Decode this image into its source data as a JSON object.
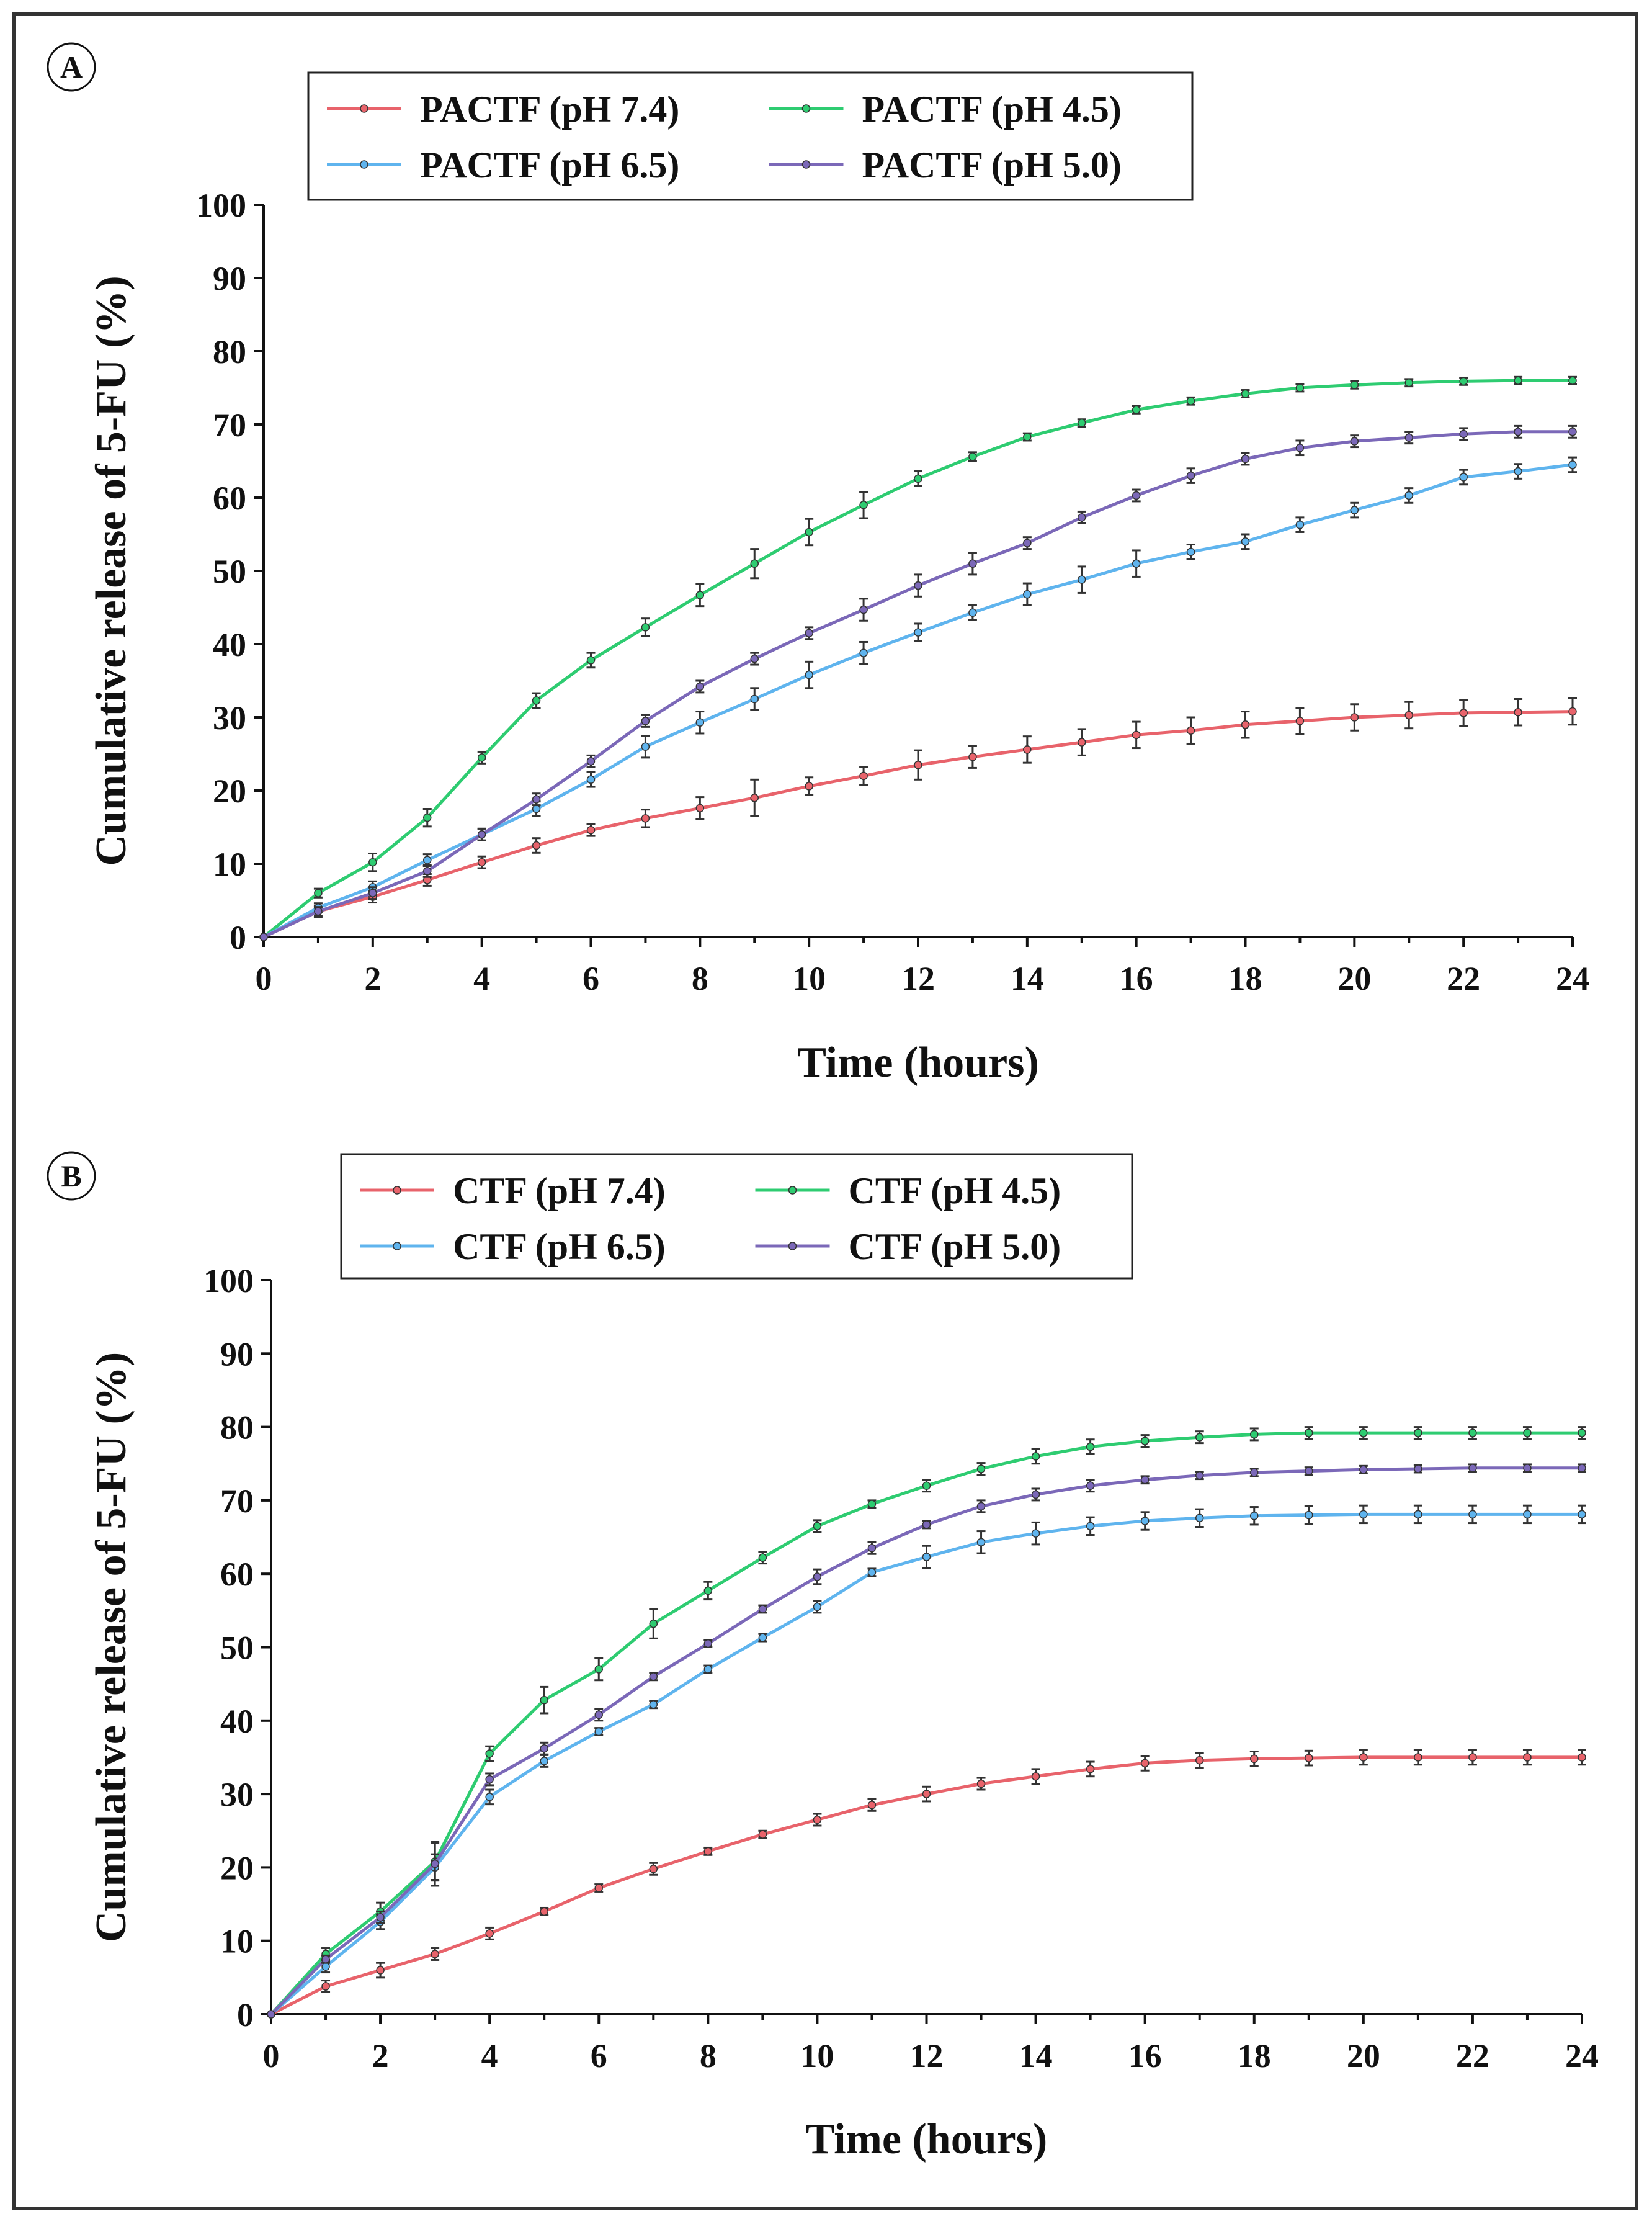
{
  "colors": {
    "ph74": "#e8636b",
    "ph45": "#2ecc71",
    "ph65": "#5fb4ee",
    "ph50": "#7b68b8",
    "axis": "#111111",
    "error_bar": "#333333"
  },
  "chart_data": [
    {
      "panel_label": "A",
      "type": "line",
      "xlabel": "Time  (hours)",
      "ylabel": "Cumulative release of 5-FU (%)",
      "xlim": [
        0,
        24
      ],
      "ylim": [
        0,
        100
      ],
      "xticks": [
        "0",
        "2",
        "4",
        "6",
        "8",
        "10",
        "12",
        "14",
        "16",
        "18",
        "20",
        "22",
        "24"
      ],
      "yticks": [
        "0",
        "10",
        "20",
        "30",
        "40",
        "50",
        "60",
        "70",
        "80",
        "90",
        "100"
      ],
      "x": [
        0,
        1,
        2,
        3,
        4,
        5,
        6,
        7,
        8,
        9,
        10,
        11,
        12,
        13,
        14,
        15,
        16,
        17,
        18,
        19,
        20,
        21,
        22,
        23,
        24
      ],
      "legend": [
        "PACTF (pH 7.4)",
        "PACTF (pH 4.5)",
        "PACTF (pH 6.5)",
        "PACTF (pH 5.0)"
      ],
      "series": [
        {
          "name": "PACTF (pH 7.4)",
          "color_key": "ph74",
          "values": [
            0,
            3.5,
            5.5,
            7.8,
            10.2,
            12.5,
            14.6,
            16.2,
            17.6,
            19,
            20.6,
            22,
            23.5,
            24.6,
            25.6,
            26.6,
            27.6,
            28.2,
            29,
            29.5,
            30,
            30.3,
            30.6,
            30.7,
            30.8
          ],
          "errors": [
            0,
            0.8,
            0.8,
            0.8,
            0.8,
            1,
            0.8,
            1.2,
            1.5,
            2.5,
            1.2,
            1.2,
            2,
            1.5,
            1.8,
            1.8,
            1.8,
            1.8,
            1.8,
            1.8,
            1.8,
            1.8,
            1.8,
            1.8,
            1.8
          ]
        },
        {
          "name": "PACTF (pH 4.5)",
          "color_key": "ph45",
          "values": [
            0,
            6,
            10.2,
            16.3,
            24.5,
            32.3,
            37.8,
            42.3,
            46.7,
            51,
            55.3,
            59,
            62.6,
            65.6,
            68.3,
            70.2,
            72,
            73.2,
            74.2,
            75,
            75.4,
            75.7,
            75.9,
            76,
            76
          ],
          "errors": [
            0,
            0.6,
            1.2,
            1.2,
            0.8,
            1,
            1,
            1.2,
            1.5,
            2,
            1.8,
            1.8,
            1,
            0.6,
            0.5,
            0.5,
            0.5,
            0.5,
            0.5,
            0.5,
            0.5,
            0.5,
            0.5,
            0.5,
            0.5
          ]
        },
        {
          "name": "PACTF (pH 6.5)",
          "color_key": "ph65",
          "values": [
            0,
            4,
            6.8,
            10.5,
            14,
            17.5,
            21.5,
            26,
            29.3,
            32.5,
            35.8,
            38.8,
            41.6,
            44.3,
            46.8,
            48.8,
            51,
            52.6,
            54,
            56.3,
            58.3,
            60.3,
            62.8,
            63.6,
            64.5
          ],
          "errors": [
            0,
            0.6,
            0.8,
            0.8,
            0.8,
            1,
            1,
            1.5,
            1.5,
            1.5,
            1.8,
            1.5,
            1.2,
            1,
            1.5,
            1.8,
            1.8,
            1,
            1,
            1,
            1,
            1,
            1,
            1,
            1
          ]
        },
        {
          "name": "PACTF (pH 5.0)",
          "color_key": "ph50",
          "values": [
            0,
            3.5,
            6,
            9,
            14,
            18.8,
            24,
            29.5,
            34.2,
            38,
            41.5,
            44.7,
            48,
            51,
            53.8,
            57.3,
            60.3,
            63,
            65.3,
            66.8,
            67.7,
            68.2,
            68.7,
            69,
            69
          ],
          "errors": [
            0,
            0.6,
            0.8,
            0.8,
            0.8,
            0.8,
            0.8,
            0.8,
            0.8,
            0.8,
            0.8,
            1.5,
            1.5,
            1.5,
            0.8,
            0.8,
            0.8,
            1,
            0.8,
            1,
            0.8,
            0.8,
            0.8,
            0.8,
            0.8
          ]
        }
      ]
    },
    {
      "panel_label": "B",
      "type": "line",
      "xlabel": "Time  (hours)",
      "ylabel": "Cumulative release of 5-FU (%)",
      "xlim": [
        0,
        24
      ],
      "ylim": [
        0,
        100
      ],
      "xticks": [
        "0",
        "2",
        "4",
        "6",
        "8",
        "10",
        "12",
        "14",
        "16",
        "18",
        "20",
        "22",
        "24"
      ],
      "yticks": [
        "0",
        "10",
        "20",
        "30",
        "40",
        "50",
        "60",
        "70",
        "80",
        "90",
        "100"
      ],
      "x": [
        0,
        1,
        2,
        3,
        4,
        5,
        6,
        7,
        8,
        9,
        10,
        11,
        12,
        13,
        14,
        15,
        16,
        17,
        18,
        19,
        20,
        21,
        22,
        23,
        24
      ],
      "legend": [
        "CTF (pH 7.4)",
        "CTF (pH 4.5)",
        "CTF (pH 6.5)",
        "CTF (pH 5.0)"
      ],
      "series": [
        {
          "name": "CTF (pH 7.4)",
          "color_key": "ph74",
          "values": [
            0,
            3.8,
            6,
            8.2,
            11,
            14,
            17.2,
            19.8,
            22.2,
            24.5,
            26.5,
            28.5,
            30,
            31.4,
            32.4,
            33.4,
            34.2,
            34.6,
            34.8,
            34.9,
            35,
            35,
            35,
            35,
            35
          ],
          "errors": [
            0,
            0.8,
            1,
            0.8,
            0.8,
            0.5,
            0.5,
            0.8,
            0.5,
            0.5,
            0.8,
            0.8,
            1,
            0.8,
            1,
            1,
            1,
            1,
            1,
            1,
            1,
            1,
            1,
            1,
            1
          ]
        },
        {
          "name": "CTF (pH 4.5)",
          "color_key": "ph45",
          "values": [
            0,
            8.2,
            14,
            20.8,
            35.5,
            42.8,
            47,
            53.2,
            57.7,
            62.2,
            66.5,
            69.5,
            72,
            74.3,
            76,
            77.3,
            78.1,
            78.6,
            79,
            79.2,
            79.2,
            79.2,
            79.2,
            79.2,
            79.2
          ],
          "errors": [
            0,
            0.8,
            1.2,
            2.5,
            1,
            1.8,
            1.5,
            2,
            1.2,
            0.8,
            0.8,
            0.5,
            0.8,
            0.8,
            1,
            1,
            0.8,
            0.8,
            0.8,
            0.8,
            0.8,
            0.8,
            0.8,
            0.8,
            0.8
          ]
        },
        {
          "name": "CTF (pH 6.5)",
          "color_key": "ph65",
          "values": [
            0,
            6.5,
            12.6,
            20,
            29.6,
            34.5,
            38.5,
            42.2,
            47,
            51.3,
            55.5,
            60.2,
            62.3,
            64.3,
            65.5,
            66.5,
            67.2,
            67.6,
            67.9,
            68,
            68.1,
            68.1,
            68.1,
            68.1,
            68.1
          ],
          "errors": [
            0,
            0.8,
            1,
            1.8,
            1,
            0.8,
            0.5,
            0.5,
            0.5,
            0.5,
            0.8,
            0.5,
            1.5,
            1.5,
            1.5,
            1.2,
            1.2,
            1.2,
            1.2,
            1.2,
            1.2,
            1.2,
            1.2,
            1.2,
            1.2
          ]
        },
        {
          "name": "CTF (pH 5.0)",
          "color_key": "ph50",
          "values": [
            0,
            7.5,
            13.2,
            20.5,
            32,
            36.2,
            40.8,
            46,
            50.5,
            55.2,
            59.6,
            63.5,
            66.7,
            69.2,
            70.8,
            72,
            72.8,
            73.4,
            73.8,
            74,
            74.2,
            74.3,
            74.4,
            74.4,
            74.4
          ],
          "errors": [
            0,
            0.5,
            0.8,
            3,
            0.8,
            0.8,
            0.8,
            0.5,
            0.5,
            0.5,
            1,
            0.8,
            0.5,
            0.8,
            0.8,
            0.8,
            0.5,
            0.5,
            0.5,
            0.5,
            0.5,
            0.5,
            0.5,
            0.5,
            0.5
          ]
        }
      ]
    }
  ]
}
